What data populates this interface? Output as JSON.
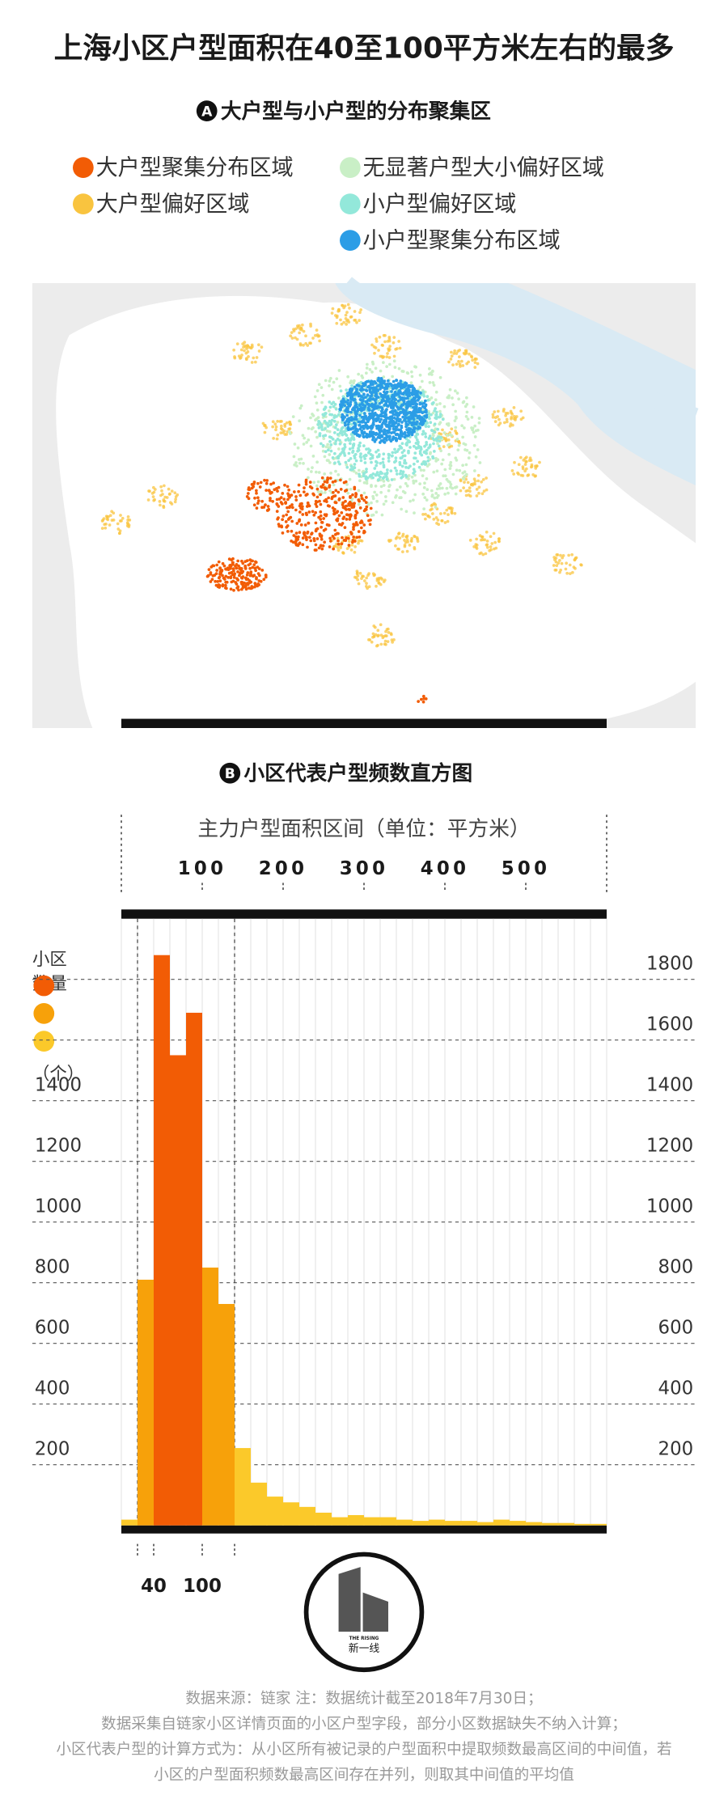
{
  "title": "上海小区户型面积在40至100平方米左右的最多",
  "section_a": {
    "marker": "A",
    "title": "大户型与小户型的分布聚集区"
  },
  "legend": [
    {
      "name": "大户型聚集分布区域",
      "color": "#f25c05"
    },
    {
      "name": "大户型偏好区域",
      "color": "#f9c43f"
    },
    {
      "name": "无显著户型大小偏好区域",
      "color": "#c9efc6"
    },
    {
      "name": "小户型偏好区域",
      "color": "#93e8da"
    },
    {
      "name": "小户型聚集分布区域",
      "color": "#2b9de6"
    }
  ],
  "chart_data": {
    "type": "histogram",
    "marker": "B",
    "title": "小区代表户型频数直方图",
    "x_label": "主力户型面积区间（单位：平方米）",
    "y_label": [
      "小区",
      "数量"
    ],
    "y_unit": "（个）",
    "legend_colors": [
      "#f25c05",
      "#f7a10a",
      "#fbc92a"
    ],
    "bins": [
      0,
      20,
      40,
      60,
      80,
      100,
      120,
      140,
      160,
      180,
      200,
      220,
      240,
      260,
      280,
      300,
      320,
      340,
      360,
      380,
      400,
      420,
      440,
      460,
      480,
      500,
      520,
      540,
      560,
      580,
      600
    ],
    "values": [
      19,
      810,
      1880,
      1550,
      1690,
      850,
      730,
      255,
      141,
      95,
      76,
      61,
      42,
      27,
      34,
      27,
      27,
      19,
      15,
      19,
      15,
      15,
      11,
      19,
      15,
      11,
      8,
      8,
      5,
      5
    ],
    "colors": [
      "#fbc92a",
      "#f7a10a",
      "#f25c05",
      "#f25c05",
      "#f25c05",
      "#f7a10a",
      "#f7a10a",
      "#fbc92a",
      "#fbc92a",
      "#fbc92a",
      "#fbc92a",
      "#fbc92a",
      "#fbc92a",
      "#fbc92a",
      "#fbc92a",
      "#fbc92a",
      "#fbc92a",
      "#fbc92a",
      "#fbc92a",
      "#fbc92a",
      "#fbc92a",
      "#fbc92a",
      "#fbc92a",
      "#fbc92a",
      "#fbc92a",
      "#fbc92a",
      "#fbc92a",
      "#fbc92a",
      "#fbc92a",
      "#fbc92a"
    ],
    "xlim": [
      0,
      600
    ],
    "xticks": [
      100,
      200,
      300,
      400,
      500
    ],
    "bottom_ticks": [
      40,
      100
    ],
    "xguides": [
      20,
      140
    ],
    "ylim": [
      0,
      2000
    ],
    "yticks": [
      200,
      400,
      600,
      800,
      1000,
      1200,
      1400,
      1600,
      1800
    ],
    "grid": true
  },
  "logo": {
    "text": "新一线",
    "subtext": "THE RISING"
  },
  "footnotes": [
    "数据来源：链家  注：数据统计截至2018年7月30日；",
    "数据采集自链家小区详情页面的小区户型字段，部分小区数据缺失不纳入计算；",
    "小区代表户型的计算方式为：从小区所有被记录的户型面积中提取频数最高区间的中间值，若",
    "小区的户型面积频数最高区间存在并列，则取其中间值的平均值"
  ]
}
